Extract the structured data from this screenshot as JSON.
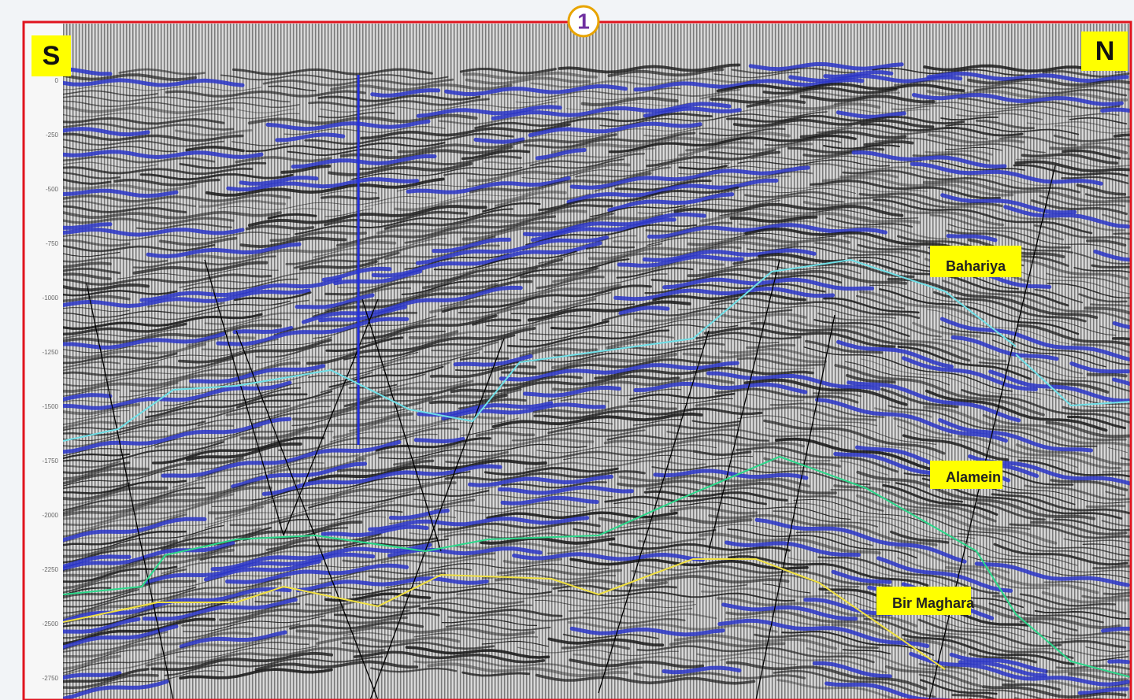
{
  "marker": "1",
  "sides": {
    "left": "S",
    "right": "N"
  },
  "horizons": [
    {
      "label": "Bahariya"
    },
    {
      "label": "Alamein"
    },
    {
      "label": "Bir Maghara"
    }
  ],
  "axis": {
    "labels": [
      "0",
      "-250",
      "-500",
      "-750",
      "-1000",
      "-1250",
      "-1500",
      "-1750",
      "-2000",
      "-2250",
      "-2500",
      "-2750"
    ]
  }
}
